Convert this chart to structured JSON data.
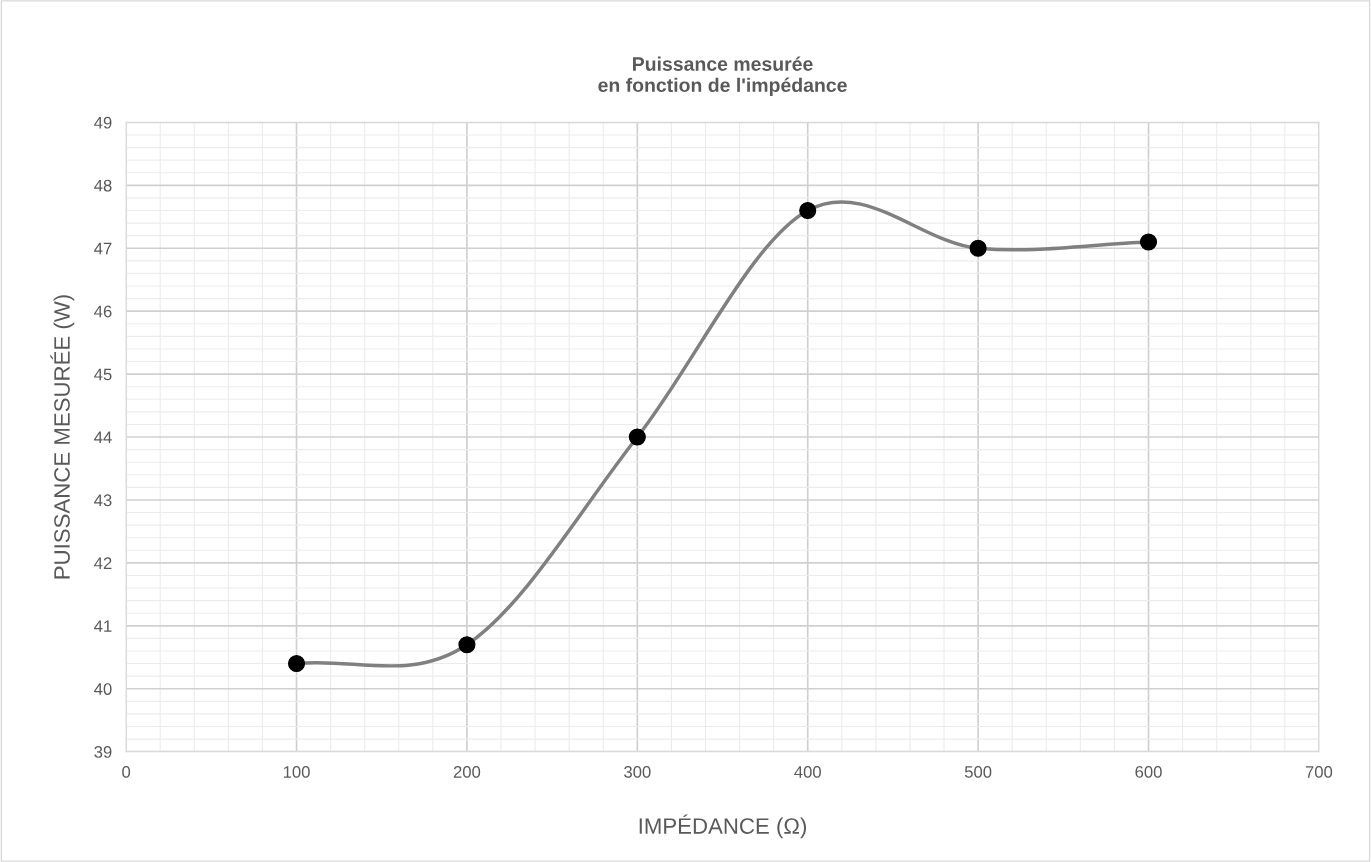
{
  "chart_data": {
    "type": "line",
    "title": "Puissance mesurée\nen fonction de l'impédance",
    "xlabel": "IMPÉDANCE (Ω)",
    "ylabel": "PUISSANCE MESURÉE (W)",
    "x": [
      100,
      200,
      300,
      400,
      500,
      600
    ],
    "series": [
      {
        "color": "#808080",
        "values": [
          40.4,
          40.7,
          44.0,
          47.6,
          47.0,
          47.1
        ]
      }
    ],
    "xlim": [
      0,
      700
    ],
    "xticks": [
      0,
      100,
      200,
      300,
      400,
      500,
      600,
      700
    ],
    "ylim": [
      39,
      49
    ],
    "yticks": [
      39,
      40,
      41,
      42,
      43,
      44,
      45,
      46,
      47,
      48,
      49
    ],
    "grid": true,
    "marker": "circle",
    "line_style": "solid"
  }
}
